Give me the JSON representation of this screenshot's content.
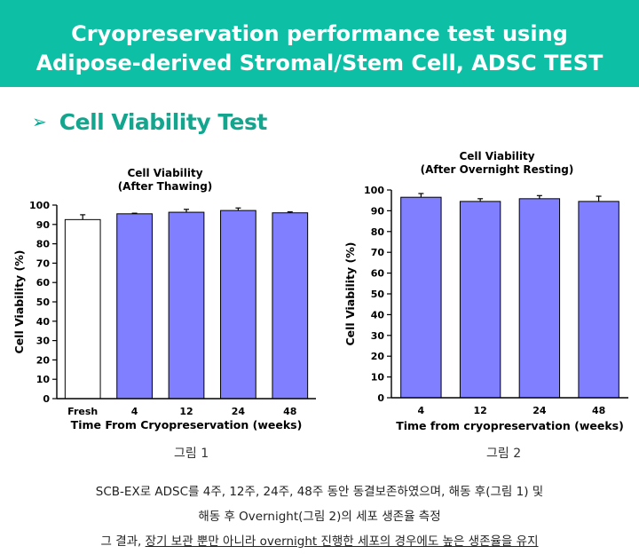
{
  "header": {
    "line1": "Cryopreservation performance test using",
    "line2": "Adipose-derived Stromal/Stem Cell, ADSC TEST"
  },
  "section": {
    "arrow": "➢",
    "title": "Cell Viability Test"
  },
  "captions": {
    "fig1": "그림 1",
    "fig2": "그림 2"
  },
  "summary": {
    "line1": "SCB-EX로 ADSC를 4주, 12주, 24주, 48주 동안 동결보존하였으며, 해동 후(그림 1) 및",
    "line2": "해동 후 Overnight(그림 2)의 세포 생존율 측정",
    "line3_prefix": "그 결과, ",
    "line3_underlined": "장기 보관 뿐만 아니라 overnight 진행한 세포의 경우에도 높은 생존율을 유지"
  },
  "colors": {
    "banner": "#0cbfa5",
    "bar": "#7f7fff",
    "bar_fresh": "#ffffff",
    "section": "#14a58e"
  },
  "chart_data": [
    {
      "type": "bar",
      "title": "Cell Viability",
      "subtitle": "(After Thawing)",
      "xlabel": "Time From Cryopreservation (weeks)",
      "ylabel": "Cell Viability  (%)",
      "ylim": [
        0,
        100
      ],
      "yticks": [
        0,
        10,
        20,
        30,
        40,
        50,
        60,
        70,
        80,
        90,
        100
      ],
      "categories": [
        "Fresh",
        "4",
        "12",
        "24",
        "48"
      ],
      "values": [
        92.5,
        95.5,
        96.3,
        97.2,
        96.0
      ],
      "errors": [
        2.5,
        0.3,
        1.5,
        1.3,
        0.5
      ],
      "grid": false
    },
    {
      "type": "bar",
      "title": "Cell Viability",
      "subtitle": "(After Overnight Resting)",
      "xlabel": "Time from cryopreservation (weeks)",
      "ylabel": "Cell Viability  (%)",
      "ylim": [
        0,
        100
      ],
      "yticks": [
        0,
        10,
        20,
        30,
        40,
        50,
        60,
        70,
        80,
        90,
        100
      ],
      "categories": [
        "4",
        "12",
        "24",
        "48"
      ],
      "values": [
        96.5,
        94.5,
        95.8,
        94.5
      ],
      "errors": [
        1.8,
        1.3,
        1.5,
        2.5
      ],
      "grid": false
    }
  ]
}
